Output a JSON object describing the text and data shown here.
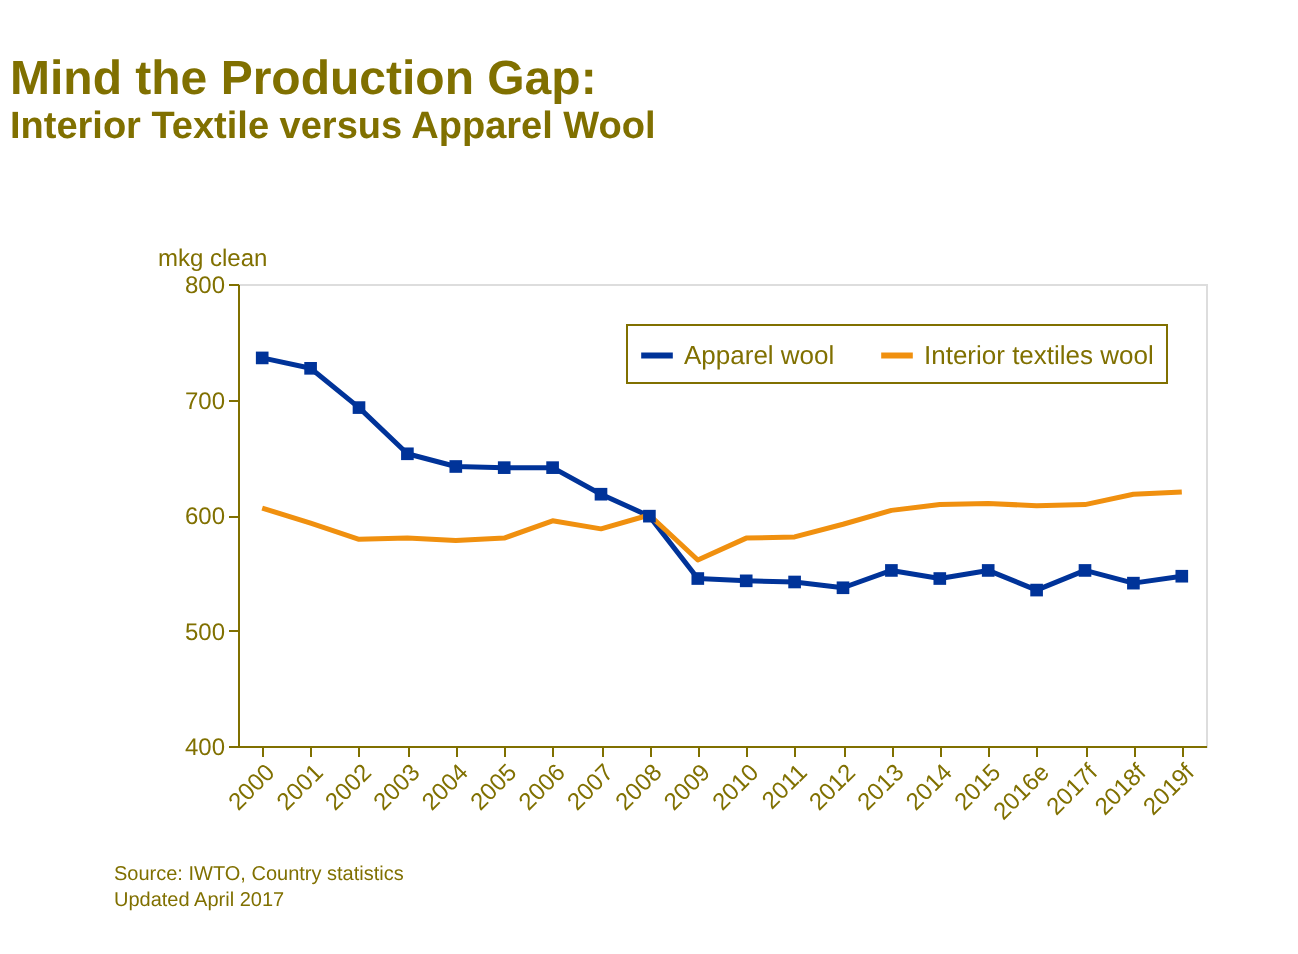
{
  "chart_data": {
    "type": "line",
    "title": "Mind the Production Gap:",
    "subtitle": "Interior Textile versus Apparel Wool",
    "ylabel": "mkg clean",
    "categories": [
      "2000",
      "2001",
      "2002",
      "2003",
      "2004",
      "2005",
      "2006",
      "2007",
      "2008",
      "2009",
      "2010",
      "2011",
      "2012",
      "2013",
      "2014",
      "2015",
      "2016e",
      "2017f",
      "2018f",
      "2019f"
    ],
    "series": [
      {
        "name": "Apparel wool",
        "color": "#003399",
        "marker": "square",
        "values": [
          736,
          727,
          693,
          653,
          642,
          641,
          641,
          618,
          599,
          545,
          543,
          542,
          537,
          552,
          545,
          552,
          535,
          552,
          541,
          547
        ]
      },
      {
        "name": "Interior textiles wool",
        "color": "#f0900f",
        "marker": "none",
        "values": [
          606,
          593,
          579,
          580,
          578,
          580,
          595,
          588,
          600,
          561,
          580,
          581,
          592,
          604,
          609,
          610,
          608,
          609,
          618,
          620
        ]
      }
    ],
    "ylim": [
      400,
      800
    ],
    "yticks": [
      400,
      500,
      600,
      700,
      800
    ],
    "grid": false,
    "legend": "top right",
    "line_style": "solid",
    "annotations": [
      "Source: IWTO, Country statistics",
      "Updated April 2017"
    ]
  }
}
